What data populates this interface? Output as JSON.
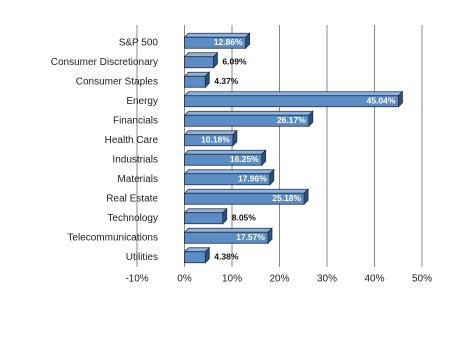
{
  "chart_data": {
    "type": "bar",
    "orientation": "horizontal",
    "categories": [
      "S&P 500",
      "Consumer Discretionary",
      "Consumer Staples",
      "Energy",
      "Financials",
      "Health Care",
      "Industrials",
      "Materials",
      "Real Estate",
      "Technology",
      "Telecommunications",
      "Utilities"
    ],
    "values": [
      12.86,
      6.09,
      4.37,
      45.04,
      26.17,
      10.18,
      16.25,
      17.96,
      25.18,
      8.05,
      17.57,
      4.38
    ],
    "value_labels": [
      "12.86%",
      "6.09%",
      "4.37%",
      "45.04%",
      "26.17%",
      "10.18%",
      "16.25%",
      "17.96%",
      "25.18%",
      "8.05%",
      "17.57%",
      "4.38%"
    ],
    "color": "#5b8cc4",
    "xlim": [
      -10,
      50
    ],
    "xticks": [
      {
        "value": -10,
        "label": "-10%"
      },
      {
        "value": 0,
        "label": "0%"
      },
      {
        "value": 10,
        "label": "10%"
      },
      {
        "value": 20,
        "label": "20%"
      },
      {
        "value": 30,
        "label": "30%"
      },
      {
        "value": 40,
        "label": "40%"
      },
      {
        "value": 50,
        "label": "50%"
      }
    ],
    "grid": true
  }
}
